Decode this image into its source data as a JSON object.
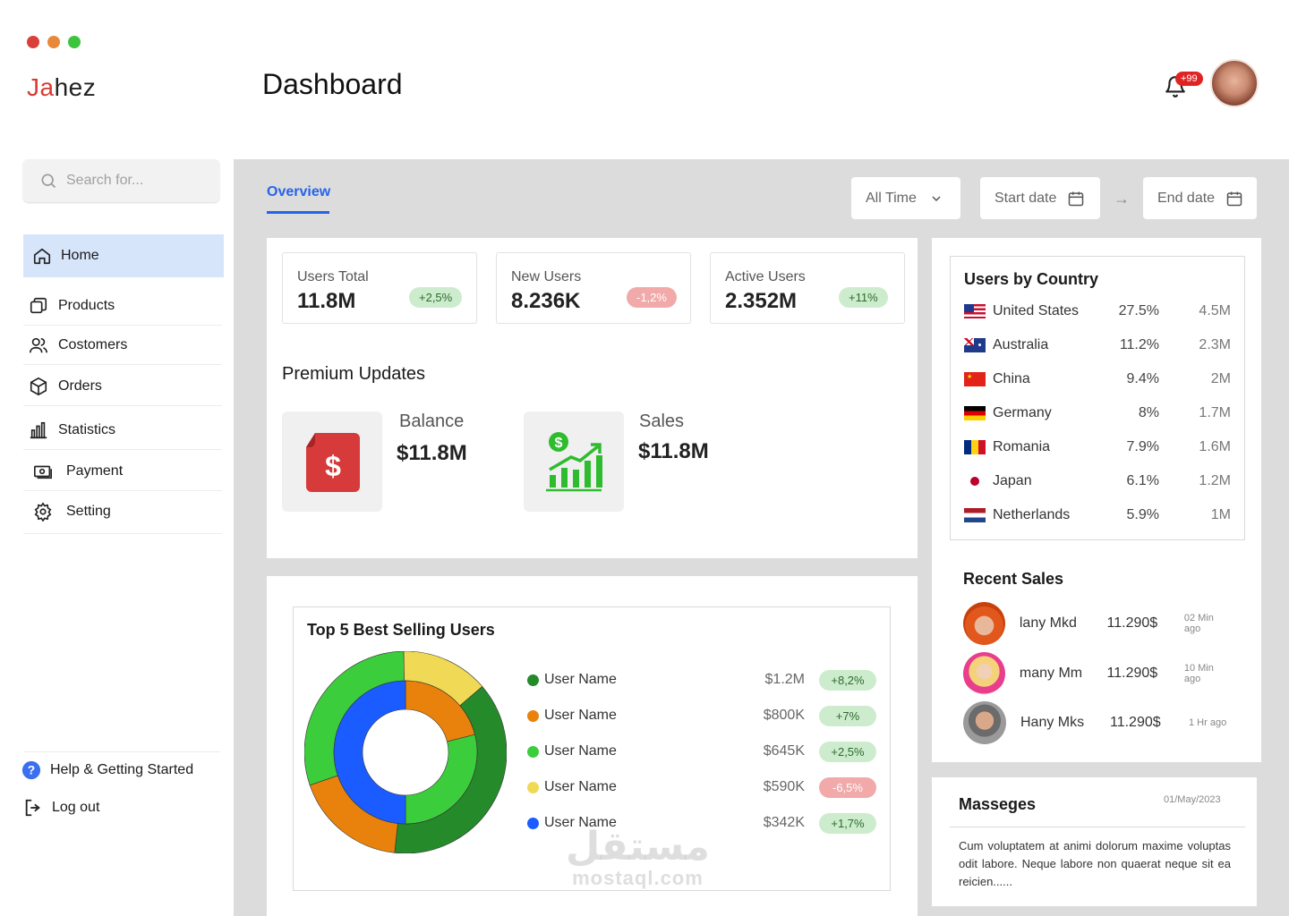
{
  "colors": {
    "accent": "#2563eb",
    "home_bg": "#d7e5fb",
    "brand_red": "#d93a34",
    "positive_bg": "#cdeccd",
    "negative_bg": "#f1a9a9"
  },
  "window_dots": [
    "#d9403a",
    "#e9883a",
    "#3cc43c"
  ],
  "logo": {
    "part1": "Ja",
    "part2": "hez"
  },
  "page_title": "Dashboard",
  "notifications": {
    "icon": "bell-icon",
    "badge": "+99"
  },
  "search": {
    "placeholder": "Search for..."
  },
  "sidebar": {
    "home": "Home",
    "items": [
      {
        "label": "Products",
        "icon": "products-icon"
      },
      {
        "label": "Costomers",
        "icon": "customers-icon"
      },
      {
        "label": "Orders",
        "icon": "orders-icon"
      },
      {
        "label": "Statistics",
        "icon": "statistics-icon"
      },
      {
        "label": "Payment",
        "icon": "payment-icon"
      },
      {
        "label": "Setting",
        "icon": "gear-icon"
      }
    ],
    "help": "Help & Getting Started",
    "logout": "Log out"
  },
  "tabs": {
    "overview": "Overview"
  },
  "filters": {
    "range": "All Time",
    "start_placeholder": "Start date",
    "end_placeholder": "End date"
  },
  "stats": [
    {
      "label": "Users Total",
      "value": "11.8M",
      "change": "+2,5%",
      "trend": "up"
    },
    {
      "label": "New Users",
      "value": "8.236K",
      "change": "-1,2%",
      "trend": "down"
    },
    {
      "label": "Active Users",
      "value": "2.352M",
      "change": "+11%",
      "trend": "up"
    }
  ],
  "premium": {
    "title": "Premium Updates",
    "balance": {
      "label": "Balance",
      "value": "$11.8M"
    },
    "sales": {
      "label": "Sales",
      "value": "$11.8M"
    }
  },
  "top5": {
    "title": "Top 5 Best Selling Users",
    "rows": [
      {
        "name": "User Name",
        "value": "$1.2M",
        "change": "+8,2%",
        "trend": "up",
        "color": "#258a2a"
      },
      {
        "name": "User Name",
        "value": "$800K",
        "change": "+7%",
        "trend": "up",
        "color": "#e8820c"
      },
      {
        "name": "User Name",
        "value": "$645K",
        "change": "+2,5%",
        "trend": "up",
        "color": "#3ccd3c"
      },
      {
        "name": "User Name",
        "value": "$590K",
        "change": "-6,5%",
        "trend": "down",
        "color": "#efd955"
      },
      {
        "name": "User Name",
        "value": "$342K",
        "change": "+1,7%",
        "trend": "up",
        "color": "#1a5cff"
      }
    ]
  },
  "chart_data": {
    "type": "pie",
    "rings": [
      {
        "ring": "outer",
        "slices": [
          {
            "color": "#3ccd3c",
            "value": 30
          },
          {
            "color": "#efd955",
            "value": 14
          },
          {
            "color": "#258a2a",
            "value": 38
          },
          {
            "color": "#e8820c",
            "value": 18
          }
        ]
      },
      {
        "ring": "inner",
        "slices": [
          {
            "color": "#e8820c",
            "value": 21
          },
          {
            "color": "#3ccd3c",
            "value": 29
          },
          {
            "color": "#1a5cff",
            "value": 50
          }
        ]
      }
    ]
  },
  "countries": {
    "title": "Users by Country",
    "rows": [
      {
        "name": "United States",
        "pct": "27.5%",
        "users": "4.5M",
        "flag": "us-flag-icon"
      },
      {
        "name": "Australia",
        "pct": "11.2%",
        "users": "2.3M",
        "flag": "au-flag-icon"
      },
      {
        "name": "China",
        "pct": "9.4%",
        "users": "2M",
        "flag": "cn-flag-icon"
      },
      {
        "name": "Germany",
        "pct": "8%",
        "users": "1.7M",
        "flag": "de-flag-icon"
      },
      {
        "name": "Romania",
        "pct": "7.9%",
        "users": "1.6M",
        "flag": "ro-flag-icon"
      },
      {
        "name": "Japan",
        "pct": "6.1%",
        "users": "1.2M",
        "flag": "jp-flag-icon"
      },
      {
        "name": "Netherlands",
        "pct": "5.9%",
        "users": "1M",
        "flag": "nl-flag-icon"
      }
    ]
  },
  "recent_sales": {
    "title": "Recent Sales",
    "rows": [
      {
        "name": "lany Mkd",
        "amount": "11.290$",
        "time": "02 Min ago"
      },
      {
        "name": "many Mm",
        "amount": "11.290$",
        "time": "10 Min ago"
      },
      {
        "name": "Hany Mks",
        "amount": "11.290$",
        "time": "1 Hr ago"
      }
    ]
  },
  "messages": {
    "title": "Masseges",
    "date": "01/May/2023",
    "text": "Cum voluptatem at animi dolorum maxime voluptas odit labore. Neque labore non quaerat neque sit ea reicien......"
  },
  "watermark": {
    "arabic": "مستقل",
    "latin": "mostaql.com"
  }
}
